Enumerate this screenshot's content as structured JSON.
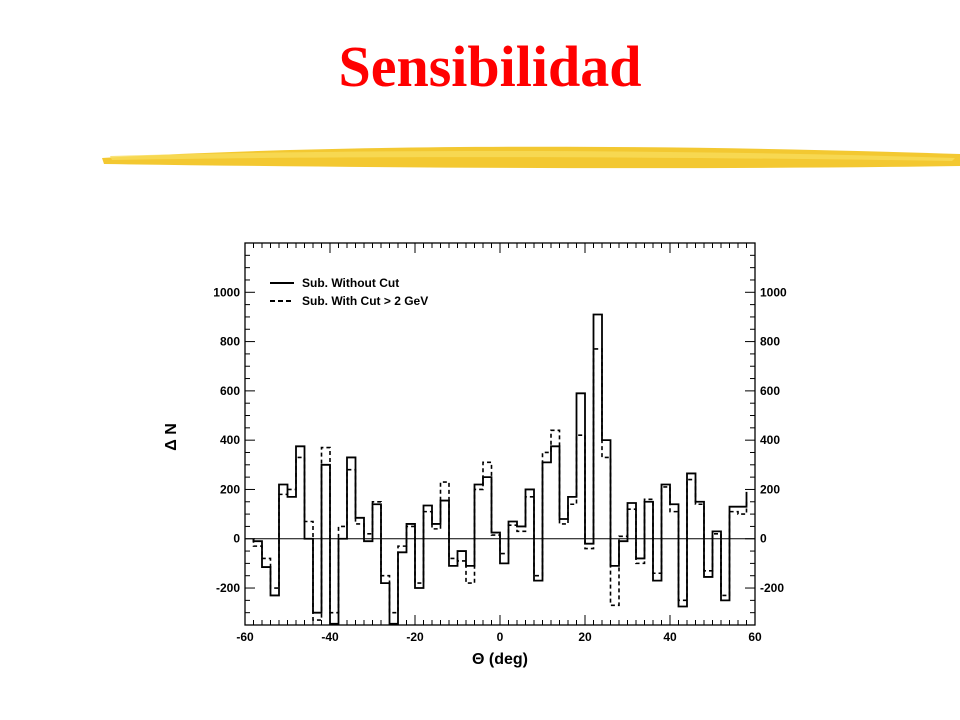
{
  "slide": {
    "title": "Sensibilidad",
    "title_color": "#ff0000",
    "accent_color": "#f2c21b"
  },
  "chart_data": {
    "type": "line",
    "drawstyle": "steps",
    "xlabel": "Θ (deg)",
    "ylabel": "Δ N",
    "xlim": [
      -60,
      60
    ],
    "ylim": [
      -350,
      1200
    ],
    "xticks": [
      -60,
      -40,
      -20,
      0,
      20,
      40,
      60
    ],
    "yticks": [
      -200,
      0,
      200,
      400,
      600,
      800,
      1000
    ],
    "grid": false,
    "legend": "top-left",
    "bin_edges": [
      -58,
      -56,
      -54,
      -52,
      -50,
      -48,
      -46,
      -44,
      -42,
      -40,
      -38,
      -36,
      -34,
      -32,
      -30,
      -28,
      -26,
      -24,
      -22,
      -20,
      -18,
      -16,
      -14,
      -12,
      -10,
      -8,
      -6,
      -4,
      -2,
      0,
      2,
      4,
      6,
      8,
      10,
      12,
      14,
      16,
      18,
      20,
      22,
      24,
      26,
      28,
      30,
      32,
      34,
      36,
      38,
      40,
      42,
      44,
      46,
      48,
      50,
      52,
      54,
      56,
      58
    ],
    "series": [
      {
        "name": "Sub. Without Cut",
        "style": "solid",
        "values": [
          -10,
          -115,
          -230,
          220,
          170,
          375,
          0,
          -300,
          300,
          -345,
          0,
          330,
          85,
          -10,
          140,
          -180,
          -345,
          -55,
          60,
          -200,
          135,
          60,
          155,
          -110,
          -50,
          -110,
          220,
          250,
          25,
          -100,
          70,
          50,
          200,
          -170,
          310,
          375,
          80,
          170,
          590,
          -20,
          910,
          400,
          -110,
          -10,
          145,
          -80,
          150,
          -170,
          220,
          140,
          -275,
          265,
          150,
          -155,
          30,
          -250,
          130,
          130,
          190
        ]
      },
      {
        "name": "Sub. With Cut > 2 GeV",
        "style": "dashed",
        "values": [
          -30,
          -80,
          -200,
          180,
          200,
          330,
          70,
          -330,
          370,
          -300,
          50,
          280,
          60,
          20,
          150,
          -150,
          -300,
          -30,
          50,
          -180,
          110,
          40,
          230,
          -80,
          -90,
          -180,
          200,
          310,
          15,
          -60,
          55,
          30,
          170,
          -150,
          350,
          440,
          60,
          140,
          420,
          -40,
          770,
          330,
          -270,
          10,
          120,
          -100,
          160,
          -140,
          210,
          110,
          -250,
          240,
          140,
          -130,
          20,
          -230,
          110,
          100,
          150
        ]
      }
    ]
  }
}
